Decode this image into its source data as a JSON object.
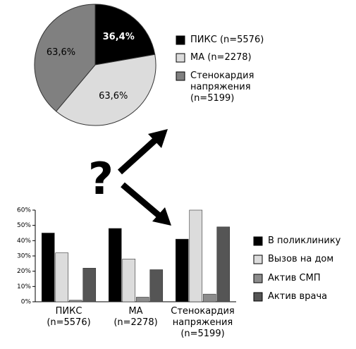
{
  "annotation": "?",
  "chart_data": [
    {
      "type": "pie",
      "categories": [
        "ПИКС (n=5576)",
        "МА (n=2278)",
        "Стенокардия напряжения (n=5199)"
      ],
      "values": [
        36.4,
        63.6,
        63.6
      ],
      "value_labels": [
        "36,4%",
        "63,6%",
        "63,6%"
      ],
      "colors": [
        "#000000",
        "#dcdcdc",
        "#808080"
      ]
    },
    {
      "type": "bar",
      "categories": [
        "ПИКС\n(n=5576)",
        "МА\n(n=2278)",
        "Стенокардия\nнапряжения\n(n=5199)"
      ],
      "series": [
        {
          "name": "В поликлинику",
          "color": "#000000",
          "values": [
            45,
            48,
            41
          ]
        },
        {
          "name": "Вызов на дом",
          "color": "#dcdcdc",
          "values": [
            32,
            28,
            60
          ]
        },
        {
          "name": "Актив СМП",
          "color": "#8c8c8c",
          "values": [
            1,
            3,
            5
          ]
        },
        {
          "name": "Актив врача",
          "color": "#555555",
          "values": [
            22,
            21,
            49
          ]
        }
      ],
      "ylim": [
        0,
        60
      ],
      "yticks": [
        {
          "value": 0,
          "label": "0%"
        },
        {
          "value": 10,
          "label": "10%"
        },
        {
          "value": 20,
          "label": "20%"
        },
        {
          "value": 30,
          "label": "30%"
        },
        {
          "value": 40,
          "label": "40%"
        },
        {
          "value": 50,
          "label": "50%"
        },
        {
          "value": 60,
          "label": "60%"
        }
      ]
    }
  ]
}
